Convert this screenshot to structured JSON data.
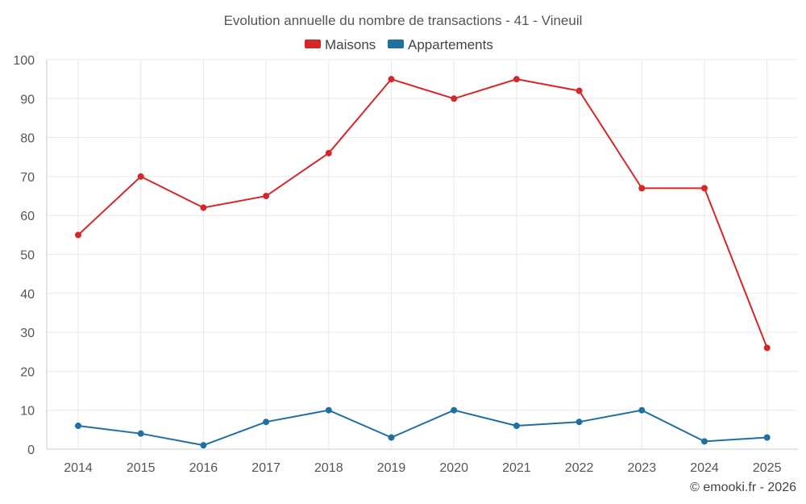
{
  "chart_data": {
    "type": "line",
    "title": "Evolution annuelle du nombre de transactions - 41 - Vineuil",
    "categories": [
      "2014",
      "2015",
      "2016",
      "2017",
      "2018",
      "2019",
      "2020",
      "2021",
      "2022",
      "2023",
      "2024",
      "2025"
    ],
    "series": [
      {
        "name": "Maisons",
        "color": "#d62728",
        "values": [
          55,
          70,
          62,
          65,
          76,
          95,
          90,
          95,
          92,
          67,
          67,
          26
        ]
      },
      {
        "name": "Appartements",
        "color": "#1f6fa0",
        "values": [
          6,
          4,
          1,
          7,
          10,
          3,
          10,
          6,
          7,
          10,
          2,
          3
        ]
      }
    ],
    "ylim": [
      0,
      100
    ],
    "yticks": [
      0,
      10,
      20,
      30,
      40,
      50,
      60,
      70,
      80,
      90,
      100
    ],
    "xlabel": "",
    "ylabel": "",
    "grid": true,
    "legend_position": "top-center"
  },
  "credit": "© emooki.fr - 2026"
}
